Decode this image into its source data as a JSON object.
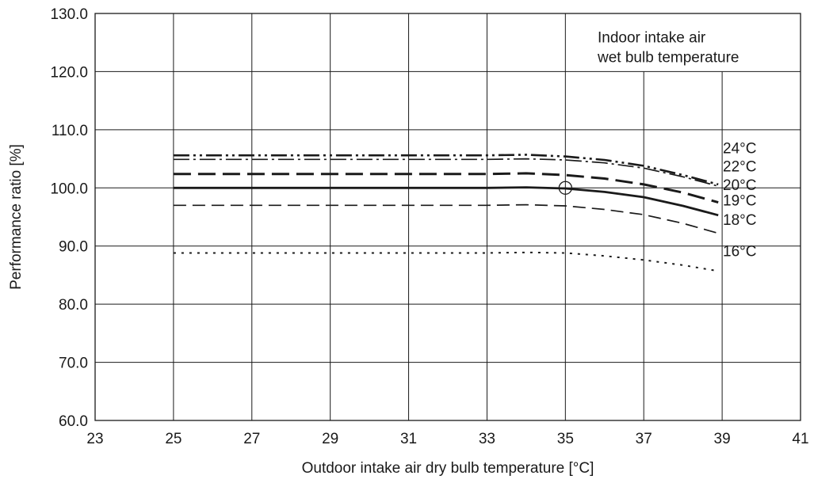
{
  "chart_data": {
    "type": "line",
    "title": "",
    "xlabel": "Outdoor intake air dry bulb temperature [°C]",
    "ylabel": "Performance ratio [%]",
    "xlim": [
      23,
      41
    ],
    "ylim": [
      60,
      130
    ],
    "xticks": [
      "23",
      "25",
      "27",
      "29",
      "31",
      "33",
      "35",
      "37",
      "39",
      "41"
    ],
    "yticks": [
      "60.0",
      "70.0",
      "80.0",
      "90.0",
      "100.0",
      "110.0",
      "120.0",
      "130.0"
    ],
    "grid": true,
    "legend_title_lines": [
      "Indoor intake air",
      "wet bulb temperature"
    ],
    "legend_placement": "top-right",
    "marker": {
      "x": 35,
      "y": 100,
      "shape": "open-circle"
    },
    "series": [
      {
        "name": "24°C",
        "style": "dash-dot-dot",
        "x": [
          25,
          27,
          29,
          31,
          33,
          34,
          35,
          36,
          37,
          38,
          38.9
        ],
        "y": [
          105.6,
          105.6,
          105.6,
          105.6,
          105.6,
          105.7,
          105.4,
          104.8,
          103.8,
          102.2,
          100.6
        ]
      },
      {
        "name": "22°C",
        "style": "dash-dot",
        "x": [
          25,
          27,
          29,
          31,
          33,
          34,
          35,
          36,
          37,
          38,
          38.9
        ],
        "y": [
          104.9,
          104.9,
          104.9,
          104.9,
          104.9,
          105.0,
          104.8,
          104.3,
          103.4,
          101.9,
          100.3
        ]
      },
      {
        "name": "20°C",
        "style": "long-dash",
        "x": [
          25,
          27,
          29,
          31,
          33,
          34,
          35,
          36,
          37,
          38,
          38.9
        ],
        "y": [
          102.4,
          102.4,
          102.4,
          102.4,
          102.4,
          102.5,
          102.2,
          101.6,
          100.6,
          99.2,
          97.5
        ]
      },
      {
        "name": "19°C",
        "style": "solid",
        "x": [
          25,
          27,
          29,
          31,
          33,
          34,
          35,
          36,
          37,
          38,
          38.9
        ],
        "y": [
          100.0,
          100.0,
          100.0,
          100.0,
          100.0,
          100.1,
          99.9,
          99.3,
          98.4,
          96.9,
          95.3
        ]
      },
      {
        "name": "18°C",
        "style": "dash",
        "x": [
          25,
          27,
          29,
          31,
          33,
          34,
          35,
          36,
          37,
          38,
          38.9
        ],
        "y": [
          97.0,
          97.0,
          97.0,
          97.0,
          97.0,
          97.1,
          96.9,
          96.3,
          95.4,
          93.9,
          92.2
        ]
      },
      {
        "name": "16°C",
        "style": "dot",
        "x": [
          25,
          27,
          29,
          31,
          33,
          34,
          35,
          36,
          37,
          38,
          38.9
        ],
        "y": [
          88.8,
          88.8,
          88.8,
          88.8,
          88.8,
          88.9,
          88.8,
          88.3,
          87.6,
          86.7,
          85.7
        ]
      }
    ],
    "series_label_values": [
      106.9,
      103.8,
      100.6,
      97.9,
      94.6,
      89.2
    ]
  }
}
